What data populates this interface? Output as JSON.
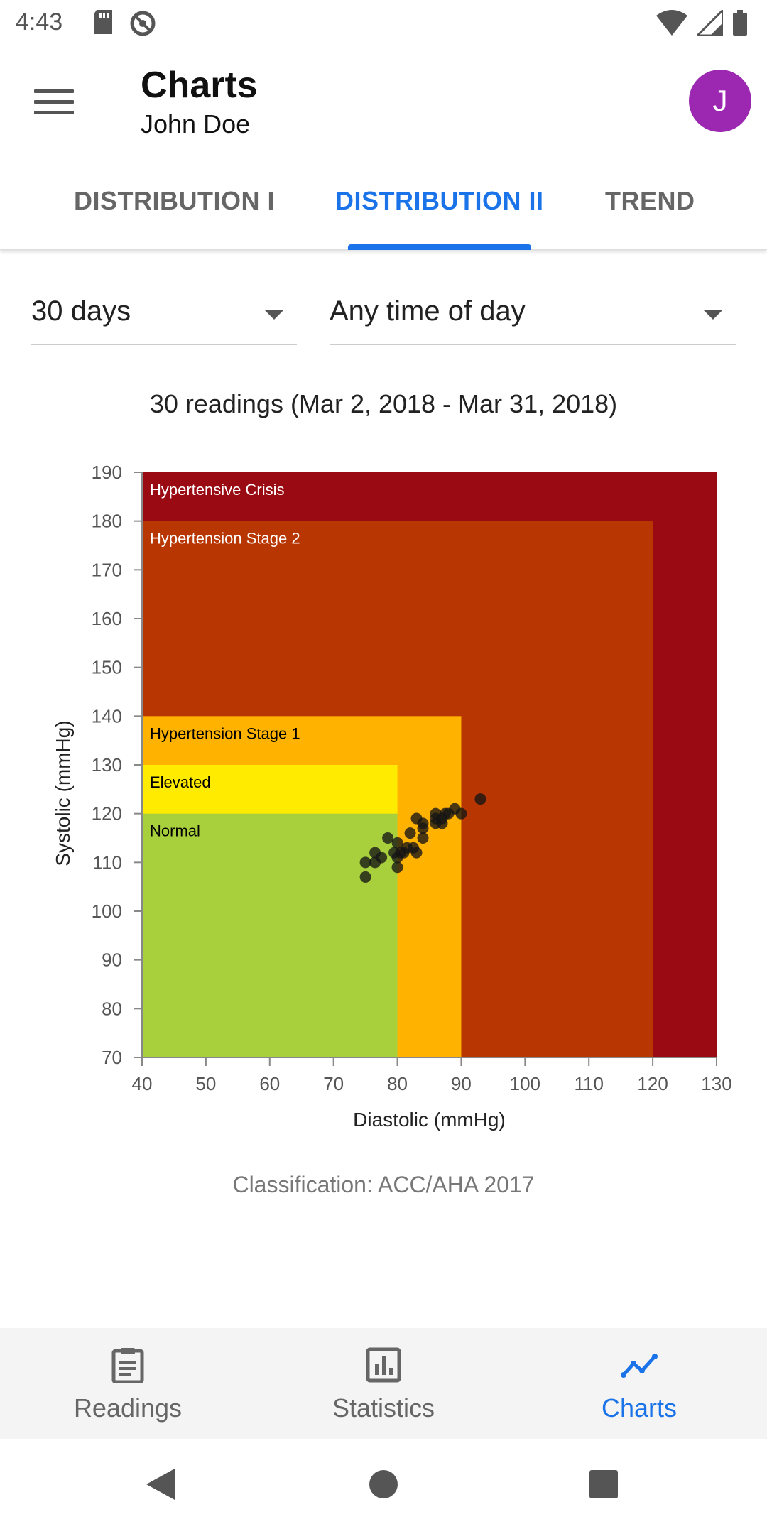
{
  "status_bar": {
    "time": "4:43"
  },
  "app_bar": {
    "title": "Charts",
    "subtitle": "John Doe",
    "avatar_letter": "J",
    "avatar_color": "#9c27b0"
  },
  "tabs": [
    {
      "label": "DISTRIBUTION I",
      "active": false
    },
    {
      "label": "DISTRIBUTION II",
      "active": true
    },
    {
      "label": "TREND",
      "active": false
    }
  ],
  "filters": {
    "period": "30 days",
    "time_of_day": "Any time of day"
  },
  "summary": "30 readings (Mar 2, 2018 - Mar 31, 2018)",
  "chart_data": {
    "type": "scatter",
    "xlabel": "Diastolic (mmHg)",
    "ylabel": "Systolic (mmHg)",
    "xlim": [
      40,
      130
    ],
    "ylim": [
      70,
      190
    ],
    "x_ticks": [
      40,
      50,
      60,
      70,
      80,
      90,
      100,
      110,
      120,
      130
    ],
    "y_ticks": [
      70,
      80,
      90,
      100,
      110,
      120,
      130,
      140,
      150,
      160,
      170,
      180,
      190
    ],
    "grid": false,
    "zones": [
      {
        "name": "Hypertensive Crisis",
        "x_max": 130,
        "y_max": 190,
        "color": "#990a12",
        "label_color": "#ffffff"
      },
      {
        "name": "Hypertension Stage 2",
        "x_max": 120,
        "y_max": 180,
        "color": "#b83602",
        "label_color": "#ffffff"
      },
      {
        "name": "Hypertension Stage 1",
        "x_max": 90,
        "y_max": 140,
        "color": "#ffb300",
        "label_color": "#000000"
      },
      {
        "name": "Elevated",
        "x_max": 80,
        "y_max": 130,
        "color": "#ffeb00",
        "label_color": "#000000"
      },
      {
        "name": "Normal",
        "x_max": 80,
        "y_max": 120,
        "color": "#a8cf3c",
        "label_color": "#000000"
      }
    ],
    "points": [
      [
        75,
        107
      ],
      [
        75,
        110
      ],
      [
        76.5,
        110
      ],
      [
        76.5,
        112
      ],
      [
        77.5,
        111
      ],
      [
        78.5,
        115
      ],
      [
        79.5,
        112
      ],
      [
        80,
        109
      ],
      [
        80,
        111
      ],
      [
        80,
        114
      ],
      [
        80.5,
        112
      ],
      [
        81,
        112
      ],
      [
        81.5,
        113
      ],
      [
        82,
        116
      ],
      [
        82.5,
        113
      ],
      [
        83,
        112
      ],
      [
        83,
        119
      ],
      [
        84,
        115
      ],
      [
        84,
        117
      ],
      [
        84,
        118
      ],
      [
        86,
        118
      ],
      [
        86,
        119
      ],
      [
        86,
        120
      ],
      [
        87,
        118
      ],
      [
        87,
        119
      ],
      [
        87.5,
        120
      ],
      [
        88,
        120
      ],
      [
        89,
        121
      ],
      [
        90,
        120
      ],
      [
        93,
        123
      ]
    ]
  },
  "classification": "Classification: ACC/AHA 2017",
  "bottom_nav": [
    {
      "label": "Readings",
      "icon": "clipboard-icon",
      "active": false
    },
    {
      "label": "Statistics",
      "icon": "bar-chart-icon",
      "active": false
    },
    {
      "label": "Charts",
      "icon": "line-chart-icon",
      "active": true
    }
  ],
  "colors": {
    "accent": "#1a73e8"
  }
}
